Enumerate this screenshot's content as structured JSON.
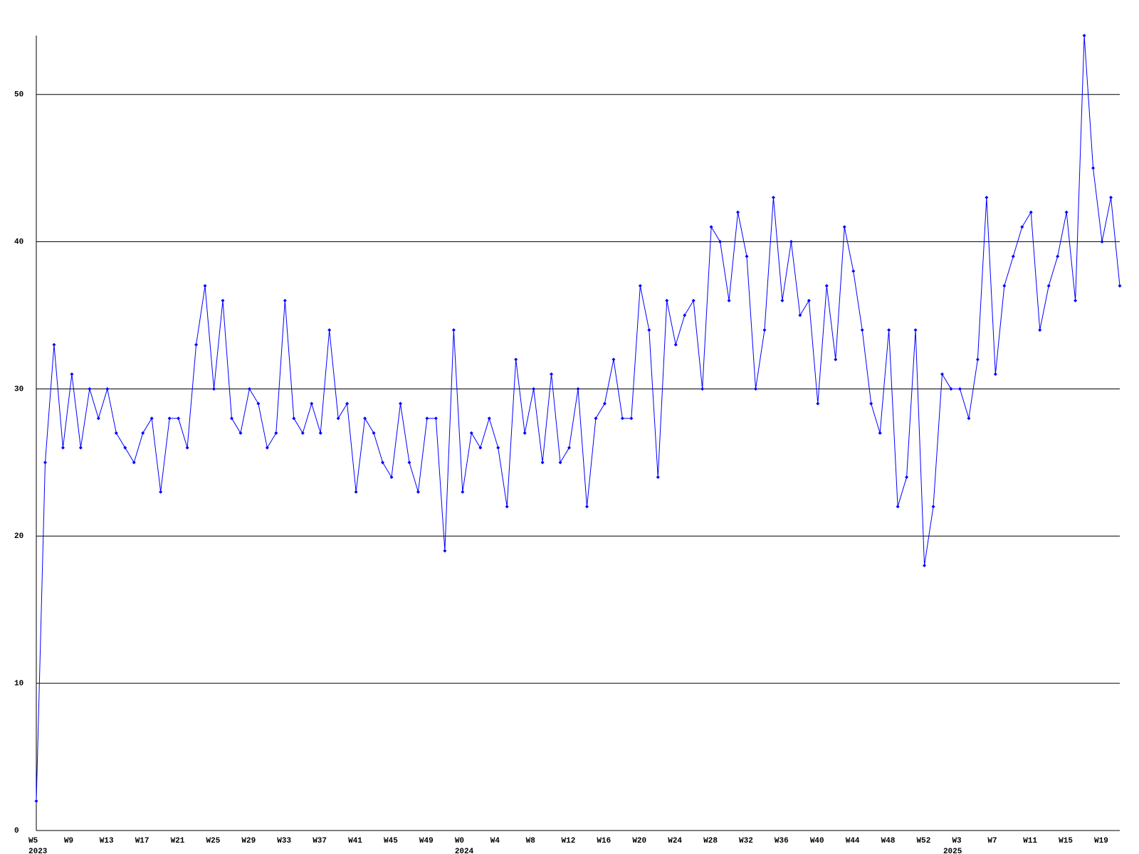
{
  "chart_data": {
    "type": "line",
    "categories": [
      "W5",
      null,
      null,
      null,
      "W9",
      null,
      null,
      null,
      "W13",
      null,
      null,
      null,
      "W17",
      null,
      null,
      null,
      "W21",
      null,
      null,
      null,
      "W25",
      null,
      null,
      null,
      "W29",
      null,
      null,
      null,
      "W33",
      null,
      null,
      null,
      "W37",
      null,
      null,
      null,
      "W41",
      null,
      null,
      null,
      "W45",
      null,
      null,
      null,
      "W49",
      null,
      null,
      null,
      "W0",
      null,
      null,
      null,
      "W4",
      null,
      null,
      null,
      "W8",
      null,
      null,
      null,
      "W12",
      null,
      null,
      null,
      "W16",
      null,
      null,
      null,
      "W20",
      null,
      null,
      null,
      "W24",
      null,
      null,
      null,
      "W28",
      null,
      null,
      null,
      "W32",
      null,
      null,
      null,
      "W36",
      null,
      null,
      null,
      "W40",
      null,
      null,
      null,
      "W44",
      null,
      null,
      null,
      "W48",
      null,
      null,
      null,
      "W52",
      null,
      null,
      null,
      "W3",
      null,
      null,
      null,
      "W7",
      null,
      null,
      null,
      "W11",
      null,
      null,
      null,
      "W15",
      null,
      null,
      null,
      "W19",
      null,
      null
    ],
    "x_sublabels": [
      "2023",
      null,
      null,
      null,
      null,
      null,
      null,
      null,
      null,
      null,
      null,
      null,
      null,
      null,
      null,
      null,
      null,
      null,
      null,
      null,
      null,
      null,
      null,
      null,
      null,
      null,
      null,
      null,
      null,
      null,
      null,
      null,
      null,
      null,
      null,
      null,
      null,
      null,
      null,
      null,
      null,
      null,
      null,
      null,
      null,
      null,
      null,
      null,
      "2024",
      null,
      null,
      null,
      null,
      null,
      null,
      null,
      null,
      null,
      null,
      null,
      null,
      null,
      null,
      null,
      null,
      null,
      null,
      null,
      null,
      null,
      null,
      null,
      null,
      null,
      null,
      null,
      null,
      null,
      null,
      null,
      null,
      null,
      null,
      null,
      null,
      null,
      null,
      null,
      null,
      null,
      null,
      null,
      null,
      null,
      null,
      null,
      null,
      null,
      null,
      null,
      null,
      null,
      null,
      "2025",
      null,
      null,
      null,
      null,
      null,
      null,
      null,
      null,
      null,
      null,
      null,
      null,
      null,
      null,
      null,
      null,
      null,
      null,
      null,
      null,
      null
    ],
    "values": [
      2,
      25,
      33,
      26,
      31,
      26,
      30,
      28,
      30,
      27,
      26,
      25,
      27,
      28,
      23,
      28,
      28,
      26,
      33,
      37,
      30,
      36,
      28,
      27,
      30,
      29,
      26,
      27,
      36,
      28,
      27,
      29,
      27,
      34,
      28,
      29,
      23,
      28,
      27,
      25,
      24,
      29,
      25,
      23,
      28,
      28,
      19,
      34,
      23,
      27,
      26,
      28,
      26,
      22,
      32,
      27,
      30,
      25,
      31,
      25,
      26,
      30,
      22,
      28,
      29,
      32,
      28,
      28,
      37,
      34,
      24,
      36,
      33,
      35,
      36,
      30,
      41,
      40,
      36,
      42,
      39,
      30,
      34,
      43,
      36,
      40,
      35,
      36,
      29,
      37,
      32,
      41,
      38,
      34,
      29,
      27,
      34,
      22,
      24,
      34,
      18,
      22,
      31,
      30,
      30,
      28,
      32,
      43,
      31,
      37,
      39,
      41,
      42,
      34,
      37,
      39,
      42,
      36,
      54,
      45,
      40,
      43,
      37
    ],
    "color": "#0000ff",
    "ylim": [
      0,
      54
    ],
    "yticks": [
      0,
      10,
      20,
      30,
      40,
      50
    ],
    "grid": true
  }
}
